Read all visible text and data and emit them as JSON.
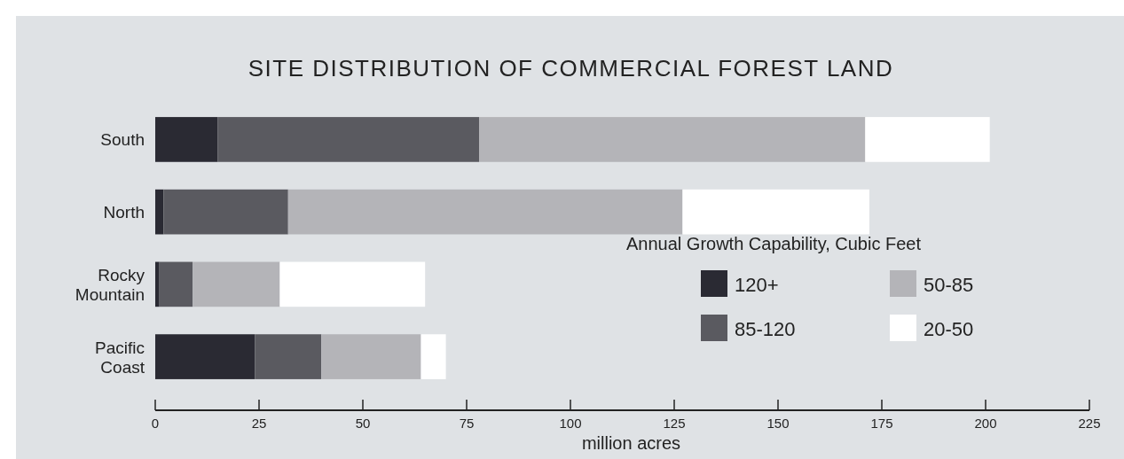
{
  "chart_data": {
    "type": "bar",
    "title": "SITE DISTRIBUTION OF COMMERCIAL FOREST LAND",
    "xlabel": "million acres",
    "orientation": "horizontal",
    "stacked": true,
    "categories": [
      "South",
      "North",
      "Rocky Mountain",
      "Pacific Coast"
    ],
    "legend_title": "Annual Growth Capability, Cubic Feet",
    "legend": "right",
    "xlim": [
      0,
      225
    ],
    "xticks": [
      0,
      25,
      50,
      75,
      100,
      125,
      150,
      175,
      200,
      225
    ],
    "grid": false,
    "series": [
      {
        "name": "120+",
        "color": "#2a2a33",
        "values": [
          15,
          2,
          1,
          24
        ]
      },
      {
        "name": "85-120",
        "color": "#5a5a60",
        "values": [
          63,
          30,
          8,
          16
        ]
      },
      {
        "name": "50-85",
        "color": "#b4b4b8",
        "values": [
          93,
          95,
          21,
          24
        ]
      },
      {
        "name": "20-50",
        "color": "#ffffff",
        "values": [
          30,
          45,
          35,
          6
        ]
      }
    ]
  }
}
